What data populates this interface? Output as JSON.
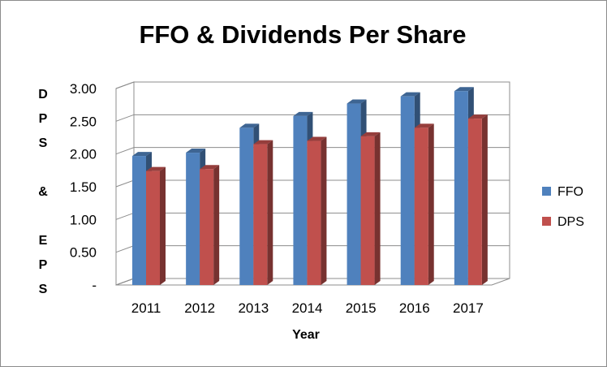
{
  "chart_data": {
    "type": "bar",
    "title": "FFO & Dividends Per Share",
    "xlabel": "Year",
    "ylabel_lines": [
      "D",
      "P",
      "S",
      "",
      "&",
      "",
      "E",
      "P",
      "S"
    ],
    "categories": [
      "2011",
      "2012",
      "2013",
      "2014",
      "2015",
      "2016",
      "2017"
    ],
    "y_ticks": [
      "-",
      "0.50",
      "1.00",
      "1.50",
      "2.00",
      "2.50",
      "3.00"
    ],
    "ylim": [
      0,
      3
    ],
    "grid": true,
    "legend_position": "right",
    "series": [
      {
        "name": "FFO",
        "color": "#4f81bd",
        "values": [
          1.97,
          2.02,
          2.4,
          2.58,
          2.77,
          2.88,
          2.96
        ]
      },
      {
        "name": "DPS",
        "color": "#c0504d",
        "values": [
          1.74,
          1.77,
          2.15,
          2.2,
          2.27,
          2.4,
          2.54
        ]
      }
    ]
  }
}
